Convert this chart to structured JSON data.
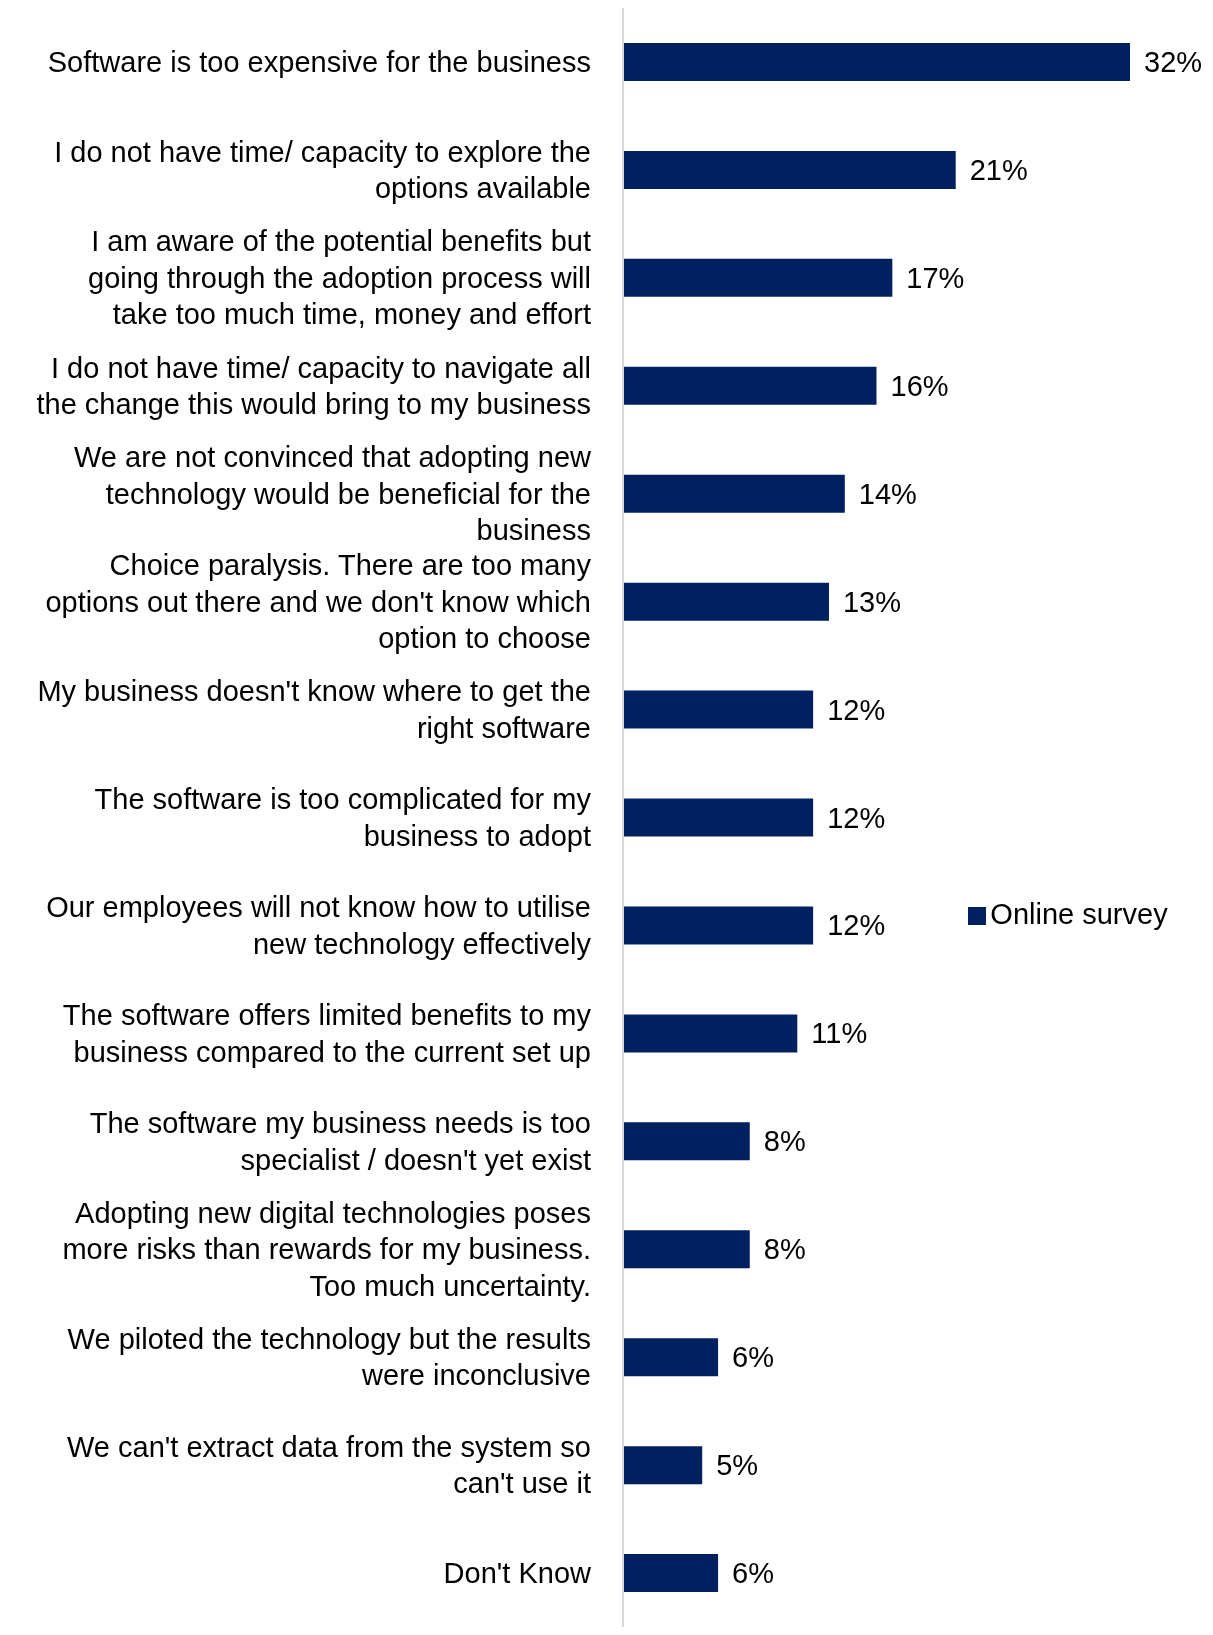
{
  "chart_data": {
    "type": "bar",
    "orientation": "horizontal",
    "categories": [
      "Software is too expensive for the business",
      "I do not have time/ capacity to explore the options available",
      "I am aware of the potential benefits but going through the adoption process will take too much time, money and effort",
      "I do not have time/ capacity to navigate all the change this would bring to my business",
      "We are not convinced that adopting new technology would be beneficial for the business",
      "Choice paralysis. There are too many options out there and we don't know which option to choose",
      "My business doesn't know where to get the right software",
      "The software is too complicated for my business to adopt",
      "Our employees will not know how to utilise new technology effectively",
      "The software offers limited benefits to my business compared to the current set up",
      "The software my business needs is too specialist / doesn't yet exist",
      "Adopting new digital technologies poses more risks than rewards for my business. Too much uncertainty.",
      "We piloted the technology but the results were inconclusive",
      "We can't extract data from the system so can't use it",
      "Don't Know"
    ],
    "series": [
      {
        "name": "Online survey",
        "color": "#002060",
        "values": [
          32,
          21,
          17,
          16,
          14,
          13,
          12,
          12,
          12,
          11,
          8,
          8,
          6,
          5,
          6
        ],
        "value_labels": [
          "32%",
          "21%",
          "17%",
          "16%",
          "14%",
          "13%",
          "12%",
          "12%",
          "12%",
          "11%",
          "8%",
          "8%",
          "6%",
          "5%",
          "6%"
        ]
      }
    ],
    "legend": "right",
    "tick_labels": "y"
  }
}
